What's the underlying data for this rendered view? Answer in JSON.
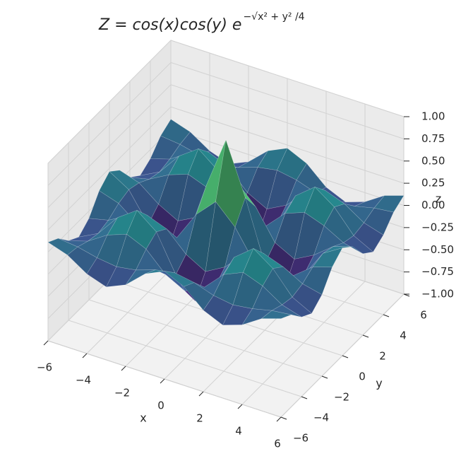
{
  "chart_data": {
    "type": "surface",
    "title": "Z = cos(x)cos(y) e",
    "title_exponent": "−√x² + y² /4",
    "xlabel": "x",
    "ylabel": "y",
    "zlabel": "z",
    "colormap": "viridis",
    "xlim": [
      -6,
      6
    ],
    "ylim": [
      -6,
      6
    ],
    "zlim": [
      -1,
      1
    ],
    "xticks": [
      {
        "value": -6,
        "label": "−6"
      },
      {
        "value": -4,
        "label": "−4"
      },
      {
        "value": -2,
        "label": "−2"
      },
      0,
      2,
      4,
      6
    ],
    "yticks": [
      {
        "value": -6,
        "label": "−6"
      },
      {
        "value": -4,
        "label": "−4"
      },
      {
        "value": -2,
        "label": "−2"
      },
      0,
      2,
      4,
      6
    ],
    "zticks": [
      {
        "value": -1,
        "label": "−1.00"
      },
      {
        "value": -0.75,
        "label": "−0.75"
      },
      {
        "value": -0.5,
        "label": "−0.50"
      },
      {
        "value": -0.25,
        "label": "−0.25"
      },
      {
        "value": 0,
        "label": "0.00"
      },
      0.25,
      {
        "value": 0.5,
        "label": "0.50"
      },
      0.75,
      {
        "value": 1,
        "label": "1.00"
      }
    ],
    "grid": true,
    "x": [
      -6,
      -5,
      -4,
      -3,
      -2,
      -1,
      0,
      1,
      2,
      3,
      4,
      5,
      6
    ],
    "y": [
      -6,
      -5,
      -4,
      -3,
      -2,
      -1,
      0,
      1,
      2,
      3,
      4,
      5,
      6
    ],
    "z": [
      [
        0.111,
        0.039,
        -0.103,
        -0.178,
        -0.082,
        0.113,
        0.214,
        0.113,
        -0.082,
        -0.178,
        -0.103,
        0.039,
        0.111
      ],
      [
        0.039,
        0.014,
        -0.037,
        -0.065,
        -0.031,
        0.043,
        0.081,
        0.043,
        -0.031,
        -0.065,
        -0.037,
        0.014,
        0.039
      ],
      [
        -0.103,
        -0.037,
        0.104,
        0.185,
        0.089,
        -0.126,
        -0.24,
        -0.126,
        0.089,
        0.185,
        0.104,
        -0.037,
        -0.103
      ],
      [
        -0.178,
        -0.065,
        0.185,
        0.339,
        0.167,
        -0.243,
        -0.468,
        -0.243,
        0.167,
        0.339,
        0.185,
        -0.065,
        -0.178
      ],
      [
        -0.082,
        -0.031,
        0.089,
        0.167,
        0.085,
        -0.129,
        -0.252,
        -0.129,
        0.085,
        0.167,
        0.089,
        -0.031,
        -0.082
      ],
      [
        0.113,
        0.043,
        -0.126,
        -0.243,
        -0.129,
        0.205,
        0.421,
        0.205,
        -0.129,
        -0.243,
        -0.126,
        0.043,
        0.113
      ],
      [
        0.214,
        0.081,
        -0.24,
        -0.468,
        -0.252,
        0.421,
        1,
        0.421,
        -0.252,
        -0.468,
        -0.24,
        0.081,
        0.214
      ],
      [
        0.113,
        0.043,
        -0.126,
        -0.243,
        -0.129,
        0.205,
        0.421,
        0.205,
        -0.129,
        -0.243,
        -0.126,
        0.043,
        0.113
      ],
      [
        -0.082,
        -0.031,
        0.089,
        0.167,
        0.085,
        -0.129,
        -0.252,
        -0.129,
        0.085,
        0.167,
        0.089,
        -0.031,
        -0.082
      ],
      [
        -0.178,
        -0.065,
        0.185,
        0.339,
        0.167,
        -0.243,
        -0.468,
        -0.243,
        0.167,
        0.339,
        0.185,
        -0.065,
        -0.178
      ],
      [
        -0.103,
        -0.037,
        0.104,
        0.185,
        0.089,
        -0.126,
        -0.24,
        -0.126,
        0.089,
        0.185,
        0.104,
        -0.037,
        -0.103
      ],
      [
        0.039,
        0.014,
        -0.037,
        -0.065,
        -0.031,
        0.043,
        0.081,
        0.043,
        -0.031,
        -0.065,
        -0.037,
        0.014,
        0.039
      ],
      [
        0.111,
        0.039,
        -0.103,
        -0.178,
        -0.082,
        0.113,
        0.214,
        0.113,
        -0.082,
        -0.178,
        -0.103,
        0.039,
        0.111
      ]
    ]
  }
}
